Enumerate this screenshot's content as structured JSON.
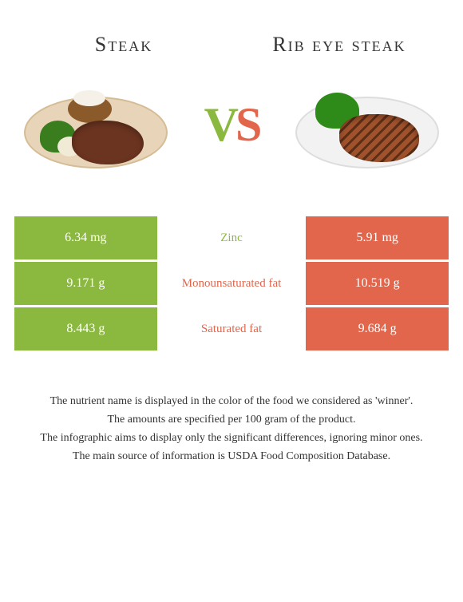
{
  "header": {
    "left_title": "Steak",
    "right_title": "Rib eye steak"
  },
  "vs": {
    "v": "V",
    "s": "S"
  },
  "colors": {
    "left": "#8bb83e",
    "right": "#e1664c"
  },
  "rows": [
    {
      "left": "6.34 mg",
      "label": "Zinc",
      "right": "5.91 mg",
      "winner": "left"
    },
    {
      "left": "9.171 g",
      "label": "Monounsaturated fat",
      "right": "10.519 g",
      "winner": "right"
    },
    {
      "left": "8.443 g",
      "label": "Saturated fat",
      "right": "9.684 g",
      "winner": "right"
    }
  ],
  "footer": {
    "line1": "The nutrient name is displayed in the color of the food we considered as 'winner'.",
    "line2": "The amounts are specified per 100 gram of the product.",
    "line3": "The infographic aims to display only the significant differences, ignoring minor ones.",
    "line4": "The main source of information is USDA Food Composition Database."
  }
}
